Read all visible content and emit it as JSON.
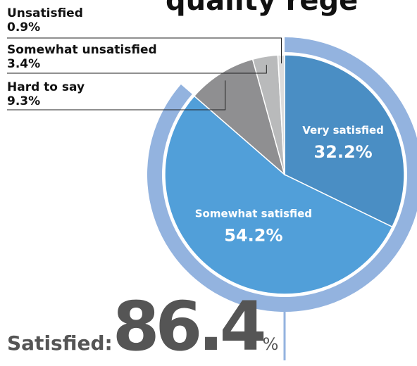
{
  "chart_data": {
    "type": "pie",
    "title": "",
    "slices": [
      {
        "label": "Very satisfied",
        "value": 32.2,
        "display": "32.2%",
        "color": "#4a8ec4"
      },
      {
        "label": "Somewhat satisfied",
        "value": 54.2,
        "display": "54.2%",
        "color": "#519fd9"
      },
      {
        "label": "Hard to say",
        "value": 9.3,
        "display": "9.3%",
        "color": "#8f8f91"
      },
      {
        "label": "Somewhat unsatisfied",
        "value": 3.4,
        "display": "3.4%",
        "color": "#b9babb"
      },
      {
        "label": "Unsatisfied",
        "value": 0.9,
        "display": "0.9%",
        "color": "#dcdcdc"
      }
    ],
    "ring_color": "#93b3df",
    "satisfied_total": {
      "label": "Satisfied:",
      "value": "86.4",
      "unit": "%"
    }
  },
  "header": {
    "title_fragment": "quality rege"
  }
}
